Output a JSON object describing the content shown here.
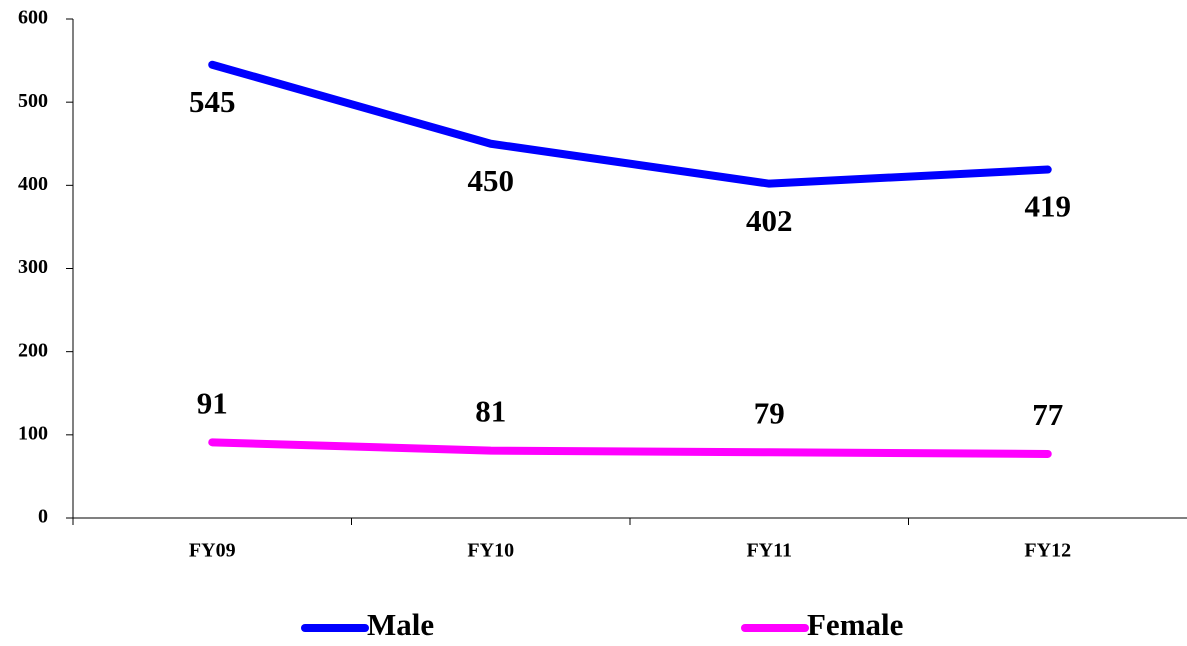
{
  "chart_data": {
    "type": "line",
    "categories": [
      "FY09",
      "FY10",
      "FY11",
      "FY12"
    ],
    "series": [
      {
        "name": "Male",
        "color": "#0000ff",
        "values": [
          545,
          450,
          402,
          419
        ]
      },
      {
        "name": "Female",
        "color": "#ff00ff",
        "values": [
          91,
          81,
          79,
          77
        ]
      }
    ],
    "ylim": [
      0,
      600
    ],
    "yticks": [
      0,
      100,
      200,
      300,
      400,
      500,
      600
    ],
    "grid": false,
    "legend": "bottom"
  }
}
